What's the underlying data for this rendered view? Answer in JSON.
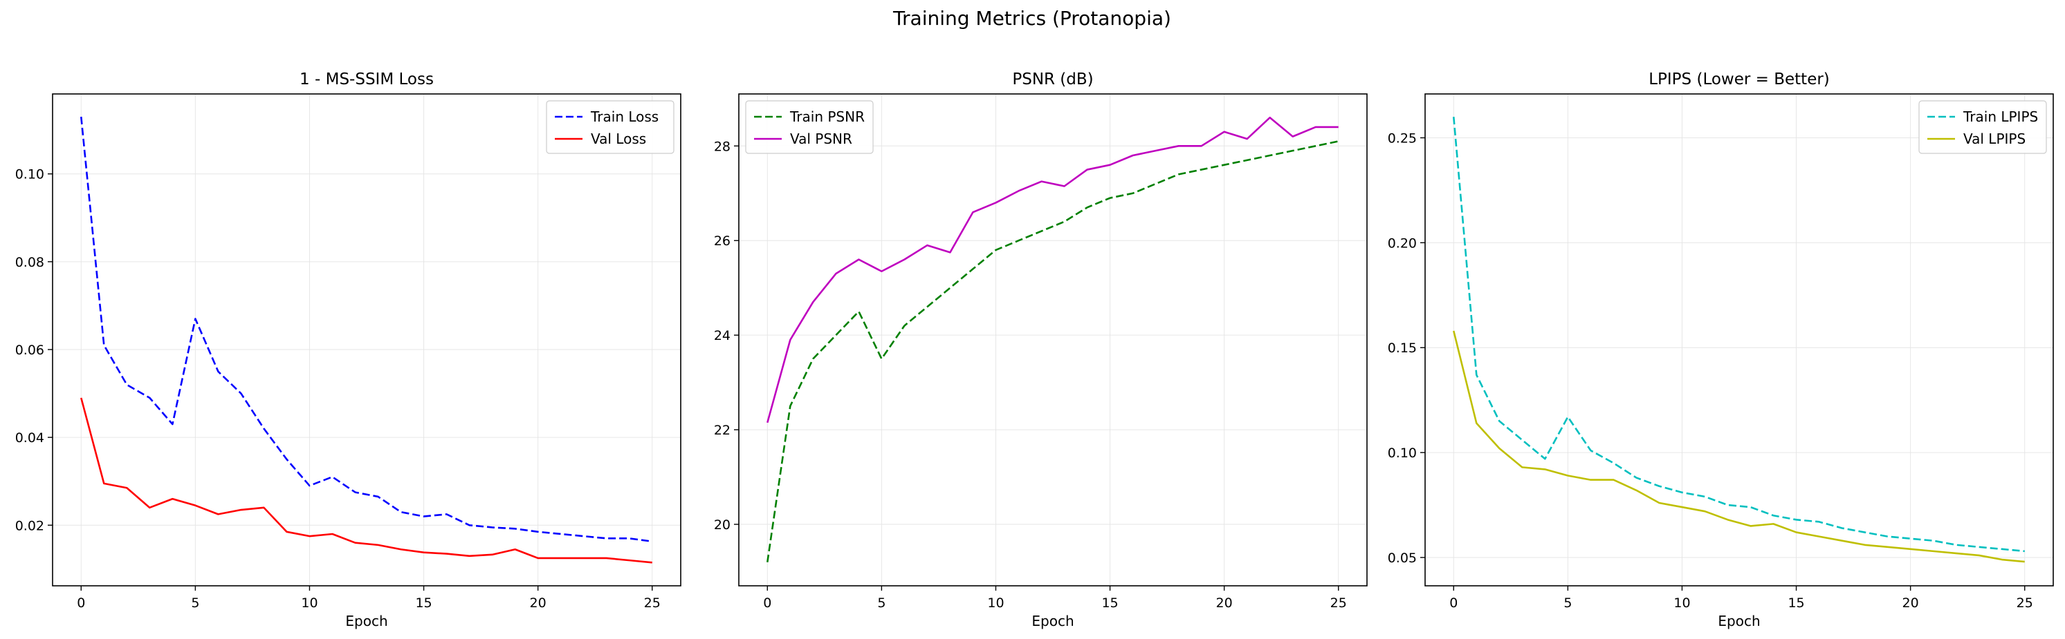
{
  "figure": {
    "suptitle": "Training Metrics (Protanopia)"
  },
  "chart_data": [
    {
      "type": "line",
      "title": "1 - MS-SSIM Loss",
      "xlabel": "Epoch",
      "ylabel": "",
      "xlim": [
        -1.25,
        26.25
      ],
      "ylim": [
        0.0062,
        0.1182
      ],
      "xticks": [
        0,
        5,
        10,
        15,
        20,
        25
      ],
      "yticks": [
        0.02,
        0.04,
        0.06,
        0.08,
        0.1
      ],
      "ytick_labels": [
        "0.02",
        "0.04",
        "0.06",
        "0.08",
        "0.10"
      ],
      "grid": true,
      "legend_position": "top-right",
      "x": [
        0,
        1,
        2,
        3,
        4,
        5,
        6,
        7,
        8,
        9,
        10,
        11,
        12,
        13,
        14,
        15,
        16,
        17,
        18,
        19,
        20,
        21,
        22,
        23,
        24,
        25
      ],
      "series": [
        {
          "name": "Train Loss",
          "color": "#0000ff",
          "dash": "dashed",
          "values": [
            0.113,
            0.061,
            0.052,
            0.049,
            0.043,
            0.067,
            0.055,
            0.05,
            0.042,
            0.035,
            0.029,
            0.031,
            0.0275,
            0.0265,
            0.023,
            0.022,
            0.0225,
            0.02,
            0.0195,
            0.0192,
            0.0185,
            0.018,
            0.0175,
            0.017,
            0.017,
            0.0163
          ]
        },
        {
          "name": "Val Loss",
          "color": "#ff0000",
          "dash": "solid",
          "values": [
            0.049,
            0.0295,
            0.0285,
            0.024,
            0.026,
            0.0245,
            0.0225,
            0.0235,
            0.024,
            0.0185,
            0.0175,
            0.018,
            0.016,
            0.0155,
            0.0145,
            0.0138,
            0.0135,
            0.013,
            0.0133,
            0.0145,
            0.0125,
            0.0125,
            0.0125,
            0.0125,
            0.012,
            0.0115
          ]
        }
      ]
    },
    {
      "type": "line",
      "title": "PSNR (dB)",
      "xlabel": "Epoch",
      "ylabel": "",
      "xlim": [
        -1.25,
        26.25
      ],
      "ylim": [
        18.7,
        29.1
      ],
      "xticks": [
        0,
        5,
        10,
        15,
        20,
        25
      ],
      "yticks": [
        20,
        22,
        24,
        26,
        28
      ],
      "ytick_labels": [
        "20",
        "22",
        "24",
        "26",
        "28"
      ],
      "grid": true,
      "legend_position": "top-left",
      "x": [
        0,
        1,
        2,
        3,
        4,
        5,
        6,
        7,
        8,
        9,
        10,
        11,
        12,
        13,
        14,
        15,
        16,
        17,
        18,
        19,
        20,
        21,
        22,
        23,
        24,
        25
      ],
      "series": [
        {
          "name": "Train PSNR",
          "color": "#008000",
          "dash": "dashed",
          "values": [
            19.2,
            22.5,
            23.5,
            24.0,
            24.5,
            23.5,
            24.2,
            24.6,
            25.0,
            25.4,
            25.8,
            26.0,
            26.2,
            26.4,
            26.7,
            26.9,
            27.0,
            27.2,
            27.4,
            27.5,
            27.6,
            27.7,
            27.8,
            27.9,
            28.0,
            28.1
          ]
        },
        {
          "name": "Val PSNR",
          "color": "#bf00bf",
          "dash": "solid",
          "values": [
            22.15,
            23.9,
            24.7,
            25.3,
            25.6,
            25.35,
            25.6,
            25.9,
            25.75,
            26.6,
            26.8,
            27.05,
            27.25,
            27.15,
            27.5,
            27.6,
            27.8,
            27.9,
            28.0,
            28.0,
            28.3,
            28.15,
            28.6,
            28.2,
            28.4,
            28.4
          ]
        }
      ]
    },
    {
      "type": "line",
      "title": "LPIPS (Lower = Better)",
      "xlabel": "Epoch",
      "ylabel": "",
      "xlim": [
        -1.25,
        26.25
      ],
      "ylim": [
        0.0365,
        0.2709
      ],
      "xticks": [
        0,
        5,
        10,
        15,
        20,
        25
      ],
      "yticks": [
        0.05,
        0.1,
        0.15,
        0.2,
        0.25
      ],
      "ytick_labels": [
        "0.05",
        "0.10",
        "0.15",
        "0.20",
        "0.25"
      ],
      "grid": true,
      "legend_position": "top-right",
      "x": [
        0,
        1,
        2,
        3,
        4,
        5,
        6,
        7,
        8,
        9,
        10,
        11,
        12,
        13,
        14,
        15,
        16,
        17,
        18,
        19,
        20,
        21,
        22,
        23,
        24,
        25
      ],
      "series": [
        {
          "name": "Train LPIPS",
          "color": "#00bfbf",
          "dash": "dashed",
          "values": [
            0.26,
            0.137,
            0.115,
            0.106,
            0.097,
            0.117,
            0.101,
            0.095,
            0.088,
            0.084,
            0.081,
            0.079,
            0.075,
            0.074,
            0.07,
            0.068,
            0.067,
            0.064,
            0.062,
            0.06,
            0.059,
            0.058,
            0.056,
            0.055,
            0.054,
            0.053
          ]
        },
        {
          "name": "Val LPIPS",
          "color": "#bfbf00",
          "dash": "solid",
          "values": [
            0.158,
            0.114,
            0.102,
            0.093,
            0.092,
            0.089,
            0.087,
            0.087,
            0.082,
            0.076,
            0.074,
            0.072,
            0.068,
            0.065,
            0.066,
            0.062,
            0.06,
            0.058,
            0.056,
            0.055,
            0.054,
            0.053,
            0.052,
            0.051,
            0.049,
            0.048
          ]
        }
      ]
    }
  ]
}
